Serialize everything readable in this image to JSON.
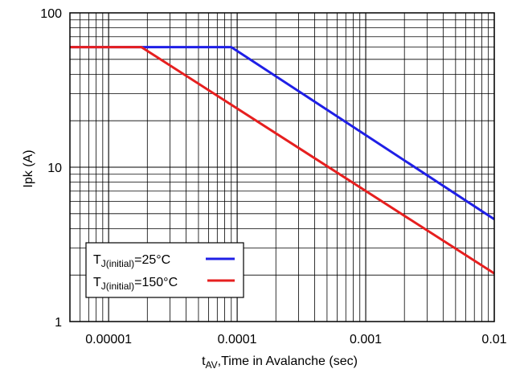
{
  "chart_data": {
    "type": "line",
    "title": "",
    "xlabel": "t",
    "xlabel_sub": "AV",
    "xlabel_rest": ",Time in Avalanche (sec)",
    "ylabel": "Ipk (A)",
    "xscale": "log",
    "yscale": "log",
    "xlim": [
      5e-06,
      0.01
    ],
    "ylim": [
      1,
      100
    ],
    "grid": true,
    "x_ticks": [
      {
        "value": 1e-05,
        "label": "0.00001"
      },
      {
        "value": 0.0001,
        "label": "0.0001"
      },
      {
        "value": 0.001,
        "label": "0.001"
      },
      {
        "value": 0.01,
        "label": "0.01"
      }
    ],
    "y_ticks": [
      {
        "value": 1,
        "label": "1"
      },
      {
        "value": 10,
        "label": "10"
      },
      {
        "value": 100,
        "label": "100"
      }
    ],
    "legend_position": "bottom-left",
    "series": [
      {
        "name": "TJ(initial)=25°C",
        "name_main": "T",
        "name_sub": "J(initial)",
        "name_rest": "=25°C",
        "color": "#1f1fe6",
        "points": [
          [
            5e-06,
            60
          ],
          [
            9e-05,
            60
          ],
          [
            0.01,
            4.6
          ]
        ]
      },
      {
        "name": "TJ(initial)=150°C",
        "name_main": "T",
        "name_sub": "J(initial)",
        "name_rest": "=150°C",
        "color": "#e61f1f",
        "points": [
          [
            5e-06,
            60
          ],
          [
            1.8e-05,
            60
          ],
          [
            0.01,
            2.05
          ]
        ]
      }
    ]
  }
}
